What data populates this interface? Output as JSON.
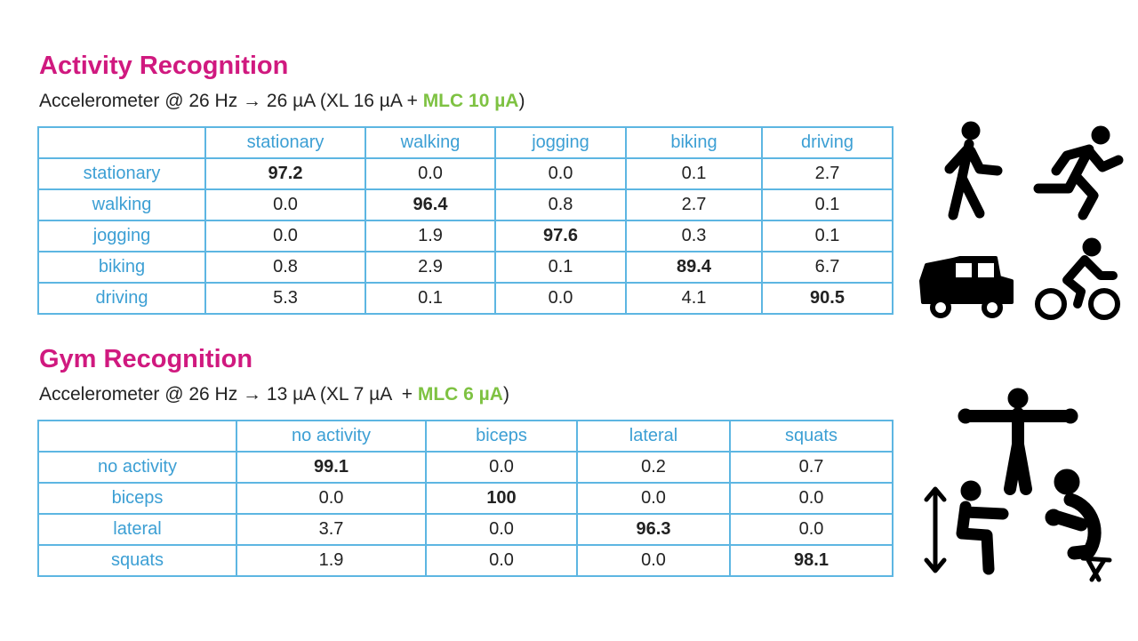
{
  "sections": [
    {
      "title": "Activity Recognition",
      "subtitle": {
        "text": "Accelerometer @ 26 Hz → 26 µA (XL 16 µA + ",
        "highlight": "MLC 10 µA",
        "end": ")"
      },
      "table": {
        "columns": [
          "stationary",
          "walking",
          "jogging",
          "biking",
          "driving"
        ],
        "rows": [
          [
            "stationary",
            "97.2",
            "0.0",
            "0.0",
            "0.1",
            "2.7"
          ],
          [
            "walking",
            "0.0",
            "96.4",
            "0.8",
            "2.7",
            "0.1"
          ],
          [
            "jogging",
            "0.0",
            "1.9",
            "97.6",
            "0.3",
            "0.1"
          ],
          [
            "biking",
            "0.8",
            "2.9",
            "0.1",
            "89.4",
            "6.7"
          ],
          [
            "driving",
            "5.3",
            "0.1",
            "0.0",
            "4.1",
            "90.5"
          ]
        ]
      }
    },
    {
      "title": "Gym Recognition",
      "subtitle": {
        "text": "Accelerometer @ 26 Hz → 13 µA (XL 7 µA  + ",
        "highlight": "MLC 6 µA",
        "end": ")"
      },
      "table": {
        "columns": [
          "no activity",
          "biceps",
          "lateral",
          "squats"
        ],
        "rows": [
          [
            "no activity",
            "99.1",
            "0.0",
            "0.2",
            "0.7"
          ],
          [
            "biceps",
            "0.0",
            "100",
            "0.0",
            "0.0"
          ],
          [
            "lateral",
            "3.7",
            "0.0",
            "96.3",
            "0.0"
          ],
          [
            "squats",
            "1.9",
            "0.0",
            "0.0",
            "98.1"
          ]
        ]
      }
    }
  ]
}
